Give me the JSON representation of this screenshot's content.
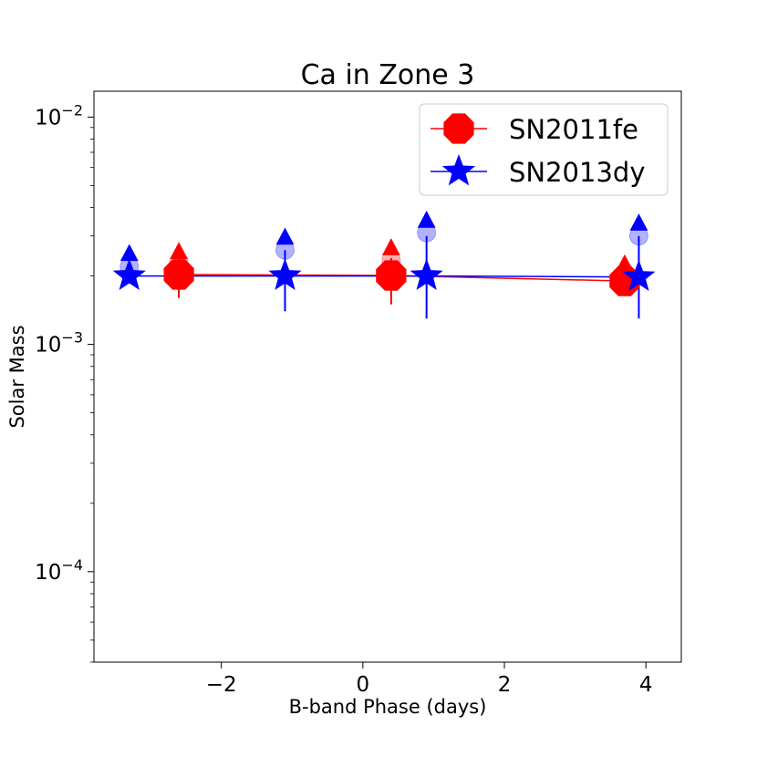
{
  "chart_data": {
    "type": "scatter",
    "title": "Ca in Zone 3",
    "xlabel": "B-band Phase (days)",
    "ylabel": "Solar Mass",
    "xlim": [
      -3.8,
      4.5
    ],
    "ylim": [
      4e-05,
      0.013
    ],
    "yscale": "log",
    "x_ticks": [
      -2,
      0,
      2,
      4
    ],
    "x_tick_labels": [
      "−2",
      "0",
      "2",
      "4"
    ],
    "y_ticks": [
      0.0001,
      0.001,
      0.01
    ],
    "y_tick_labels": [
      {
        "base": "10",
        "exp": "−4"
      },
      {
        "base": "10",
        "exp": "−3"
      },
      {
        "base": "10",
        "exp": "−2"
      }
    ],
    "legend_position": "top-right",
    "series": [
      {
        "name": "SN2011fe",
        "color": "#ff0000",
        "marker": "octagon",
        "x": [
          -2.6,
          0.4,
          3.7
        ],
        "y": [
          0.00203,
          0.00201,
          0.0019
        ],
        "yerr_low": [
          0.0016,
          0.0015,
          0.00185
        ],
        "yerr_high": [
          0.0024,
          0.0024,
          0.002
        ],
        "upper_limit_x": [
          -2.6,
          0.4,
          3.7
        ],
        "upper_limit_y": [
          0.00255,
          0.00265,
          0.00225
        ],
        "faded_x": [
          -2.6,
          0.4,
          3.7
        ],
        "faded_y": [
          0.0023,
          0.00235,
          0.00205
        ]
      },
      {
        "name": "SN2013dy",
        "color": "#0000ff",
        "marker": "star",
        "x": [
          -3.3,
          -1.1,
          0.9,
          3.9
        ],
        "y": [
          0.002,
          0.002,
          0.002,
          0.00198
        ],
        "yerr_low": [
          0.00195,
          0.0014,
          0.0013,
          0.0013
        ],
        "yerr_high": [
          0.00215,
          0.0026,
          0.003,
          0.003
        ],
        "upper_limit_x": [
          -3.3,
          -1.1,
          0.9,
          3.9
        ],
        "upper_limit_y": [
          0.0025,
          0.00295,
          0.0035,
          0.0034
        ],
        "faded_x": [
          -3.3,
          -1.1,
          0.9,
          3.9
        ],
        "faded_y": [
          0.0022,
          0.0026,
          0.0031,
          0.003
        ]
      }
    ]
  }
}
